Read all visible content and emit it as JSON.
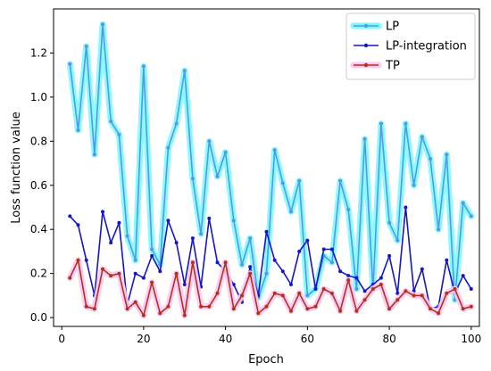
{
  "chart_data": {
    "type": "line",
    "xlabel": "Epoch",
    "ylabel": "Loss function value",
    "xlim": [
      -2,
      102
    ],
    "ylim": [
      -0.04,
      1.4
    ],
    "xticks": [
      0,
      20,
      40,
      60,
      80,
      100
    ],
    "yticks": [
      0.0,
      0.2,
      0.4,
      0.6,
      0.8,
      1.0,
      1.2
    ],
    "legend_position": "top-right",
    "x": [
      2,
      4,
      6,
      8,
      10,
      12,
      14,
      16,
      18,
      20,
      22,
      24,
      26,
      28,
      30,
      32,
      34,
      36,
      38,
      40,
      42,
      44,
      46,
      48,
      50,
      52,
      54,
      56,
      58,
      60,
      62,
      64,
      66,
      68,
      70,
      72,
      74,
      76,
      78,
      80,
      82,
      84,
      86,
      88,
      90,
      92,
      94,
      96,
      98,
      100
    ],
    "series": [
      {
        "name": "LP",
        "color": "#4f9be8",
        "glow": "#7df9ff",
        "values": [
          1.15,
          0.85,
          1.23,
          0.74,
          1.33,
          0.89,
          0.83,
          0.37,
          0.26,
          1.14,
          0.31,
          0.24,
          0.77,
          0.88,
          1.12,
          0.63,
          0.38,
          0.8,
          0.64,
          0.75,
          0.44,
          0.24,
          0.36,
          0.09,
          0.2,
          0.76,
          0.61,
          0.48,
          0.62,
          0.1,
          0.13,
          0.28,
          0.25,
          0.62,
          0.49,
          0.13,
          0.81,
          0.13,
          0.88,
          0.43,
          0.35,
          0.88,
          0.6,
          0.82,
          0.72,
          0.4,
          0.74,
          0.08,
          0.52,
          0.46
        ]
      },
      {
        "name": "LP-integration",
        "color": "#1515cc",
        "glow": "",
        "values": [
          0.46,
          0.42,
          0.26,
          0.1,
          0.48,
          0.34,
          0.43,
          0.06,
          0.2,
          0.18,
          0.28,
          0.21,
          0.44,
          0.34,
          0.15,
          0.36,
          0.14,
          0.45,
          0.25,
          0.21,
          0.15,
          0.07,
          0.23,
          0.1,
          0.39,
          0.26,
          0.21,
          0.15,
          0.3,
          0.35,
          0.13,
          0.31,
          0.31,
          0.21,
          0.19,
          0.18,
          0.12,
          0.15,
          0.18,
          0.28,
          0.11,
          0.5,
          0.12,
          0.22,
          0.04,
          0.05,
          0.26,
          0.11,
          0.19,
          0.13
        ]
      },
      {
        "name": "TP",
        "color": "#b5301a",
        "glow": "#f9c9f4",
        "values": [
          0.18,
          0.26,
          0.05,
          0.04,
          0.22,
          0.19,
          0.2,
          0.04,
          0.07,
          0.01,
          0.16,
          0.02,
          0.05,
          0.2,
          0.01,
          0.25,
          0.05,
          0.05,
          0.11,
          0.25,
          0.04,
          0.1,
          0.2,
          0.02,
          0.05,
          0.11,
          0.1,
          0.03,
          0.11,
          0.04,
          0.05,
          0.13,
          0.11,
          0.03,
          0.17,
          0.03,
          0.08,
          0.13,
          0.15,
          0.04,
          0.08,
          0.12,
          0.1,
          0.1,
          0.04,
          0.02,
          0.11,
          0.13,
          0.04,
          0.05
        ]
      }
    ]
  }
}
